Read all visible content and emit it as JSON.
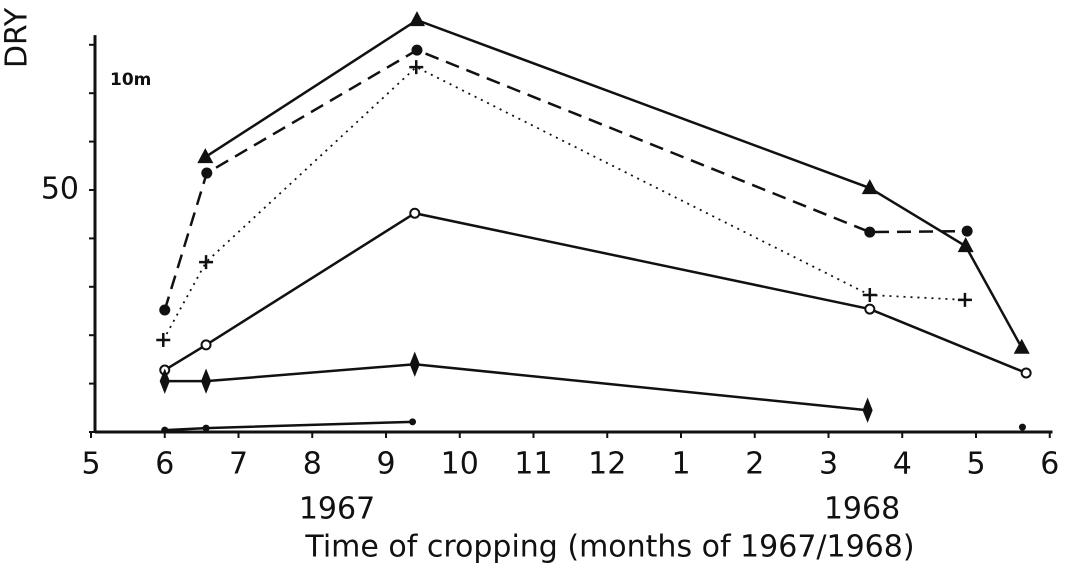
{
  "chart_data": {
    "type": "line",
    "ylabel": "DRY",
    "xlabel": "Time of cropping (months of 1967/1968)",
    "annotations": [
      "10m",
      "1967",
      "1968"
    ],
    "xlim": [
      0,
      13.2
    ],
    "xticks": [
      {
        "value": 0,
        "label": "5"
      },
      {
        "value": 1,
        "label": "6"
      },
      {
        "value": 2,
        "label": "7"
      },
      {
        "value": 3,
        "label": "8"
      },
      {
        "value": 4,
        "label": "9"
      },
      {
        "value": 5,
        "label": "10"
      },
      {
        "value": 6,
        "label": "11"
      },
      {
        "value": 7,
        "label": "12"
      },
      {
        "value": 8,
        "label": "1"
      },
      {
        "value": 9,
        "label": "2"
      },
      {
        "value": 10,
        "label": "3"
      },
      {
        "value": 11,
        "label": "4"
      },
      {
        "value": 12,
        "label": "5"
      },
      {
        "value": 13,
        "label": "6"
      }
    ],
    "ylim": [
      0,
      82
    ],
    "yticks": [
      50
    ],
    "yminor": [
      0,
      10,
      20,
      30,
      40,
      60,
      70,
      80
    ],
    "series": [
      {
        "marker": "triangle",
        "dash": "solid",
        "color": "#111",
        "x": [
          1.55,
          4.42,
          10.56,
          11.86,
          12.62
        ],
        "values": [
          56.8,
          85.1,
          50.4,
          38.4,
          17.4
        ]
      },
      {
        "marker": "dot",
        "dash": "dashed",
        "color": "#111",
        "x": [
          1.0,
          1.57,
          4.42,
          10.56,
          11.88
        ],
        "values": [
          25.2,
          53.5,
          78.9,
          41.3,
          41.5
        ]
      },
      {
        "marker": "plus",
        "dash": "dotted",
        "color": "#111",
        "x": [
          0.98,
          1.56,
          4.41,
          10.56,
          11.85
        ],
        "values": [
          19.0,
          35.1,
          75.4,
          28.3,
          27.3
        ]
      },
      {
        "marker": "open",
        "dash": "solid",
        "color": "#111",
        "x": [
          1.0,
          1.56,
          4.39,
          10.56,
          12.68
        ],
        "values": [
          12.8,
          18.0,
          45.2,
          25.4,
          12.2
        ]
      },
      {
        "marker": "diamond",
        "dash": "solid",
        "color": "#111",
        "x": [
          1.0,
          1.56,
          4.39,
          10.53
        ],
        "values": [
          10.5,
          10.5,
          14.0,
          4.5
        ]
      },
      {
        "marker": "small",
        "dash": "solid",
        "color": "#111",
        "x": [
          1.0,
          1.56,
          4.36,
          12.63,
          12.63
        ],
        "values": [
          0.4,
          0.8,
          2.1,
          null,
          1.0
        ]
      }
    ]
  }
}
